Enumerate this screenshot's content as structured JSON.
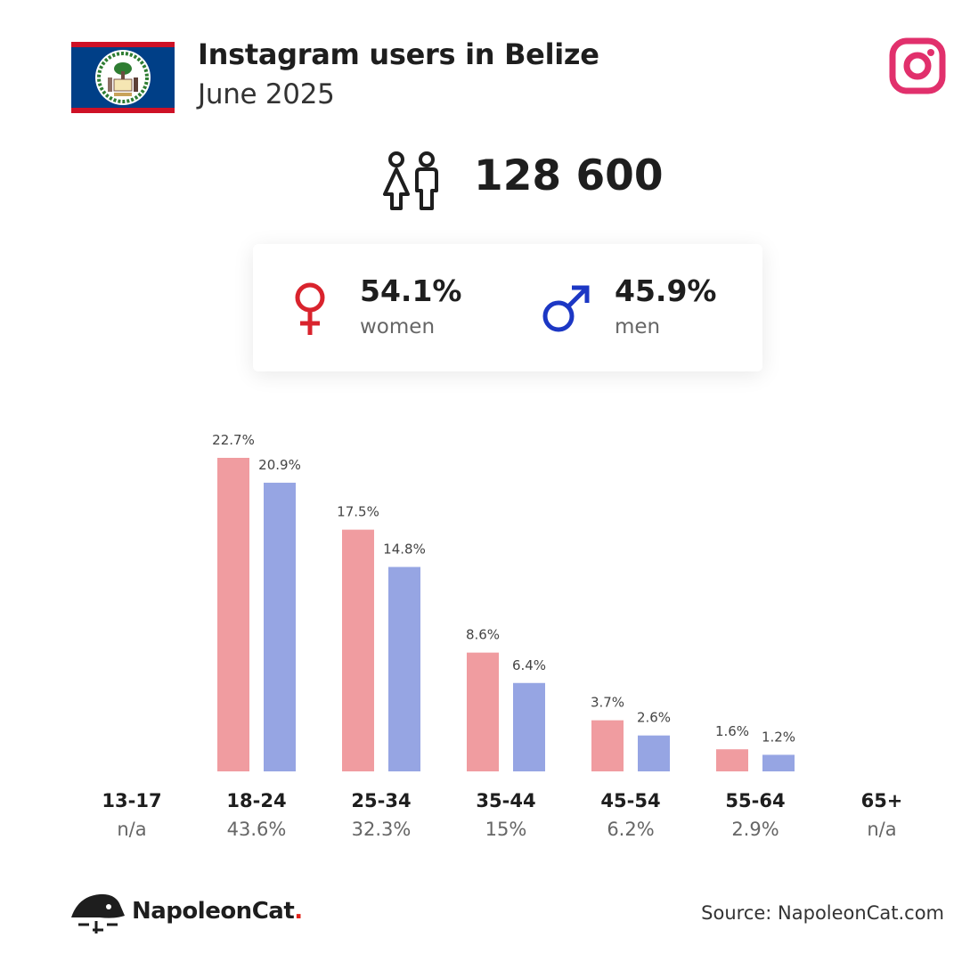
{
  "header": {
    "title": "Instagram users in Belize",
    "subtitle": "June 2025"
  },
  "summary": {
    "total": "128 600",
    "women": {
      "pct": "54.1%",
      "label": "women"
    },
    "men": {
      "pct": "45.9%",
      "label": "men"
    }
  },
  "colors": {
    "women_bar": "#f09ca0",
    "men_bar": "#96a5e3",
    "women_icon": "#d9232d",
    "men_icon": "#1c37c4",
    "instagram": "#e1306c"
  },
  "icons": [
    "belize-flag",
    "instagram-icon",
    "people-icon",
    "female-icon",
    "male-icon",
    "napoleoncat-logo"
  ],
  "chart_data": {
    "type": "bar",
    "categories": [
      "13-17",
      "18-24",
      "25-34",
      "35-44",
      "45-54",
      "55-64",
      "65+"
    ],
    "category_totals": [
      "n/a",
      "43.6%",
      "32.3%",
      "15%",
      "6.2%",
      "2.9%",
      "n/a"
    ],
    "series": [
      {
        "values": [
          null,
          22.7,
          17.5,
          8.6,
          3.7,
          1.6,
          null
        ],
        "labels": [
          "",
          "22.7%",
          "17.5%",
          "8.6%",
          "3.7%",
          "1.6%",
          ""
        ]
      },
      {
        "values": [
          null,
          20.9,
          14.8,
          6.4,
          2.6,
          1.2,
          null
        ],
        "labels": [
          "",
          "20.9%",
          "14.8%",
          "6.4%",
          "2.6%",
          "1.2%",
          ""
        ]
      }
    ],
    "ylim": [
      0,
      22.7
    ]
  },
  "footer": {
    "brand_name": "NapoleonCat",
    "brand_dot": ".",
    "source": "Source: NapoleonCat.com"
  }
}
